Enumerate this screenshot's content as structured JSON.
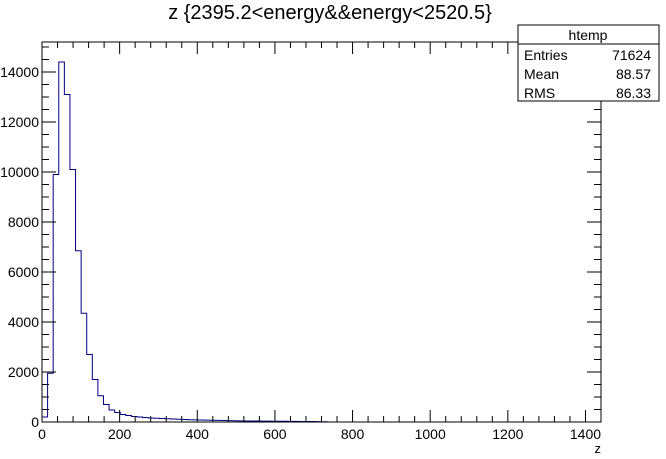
{
  "chart_data": {
    "type": "bar",
    "title": "z {2395.2<energy&&energy<2520.5}",
    "xlabel": "z",
    "ylabel": "",
    "xlim": [
      0,
      1440
    ],
    "ylim": [
      0,
      15200
    ],
    "bin_width": 14.4,
    "bin_start": 0,
    "values": [
      200,
      1950,
      9900,
      14400,
      13100,
      10100,
      6850,
      4350,
      2700,
      1700,
      1050,
      700,
      480,
      380,
      300,
      260,
      220,
      200,
      180,
      160,
      150,
      140,
      130,
      120,
      110,
      100,
      90,
      85,
      80,
      75,
      70,
      65,
      60,
      55,
      50,
      45,
      42,
      40,
      38,
      36,
      34,
      32,
      30,
      28,
      26,
      24,
      22,
      20,
      18,
      16,
      12
    ],
    "x_ticks": [
      "0",
      "200",
      "400",
      "600",
      "800",
      "1000",
      "1200",
      "1400"
    ],
    "x_tick_values": [
      0,
      200,
      400,
      600,
      800,
      1000,
      1200,
      1400
    ],
    "y_ticks": [
      "0",
      "2000",
      "4000",
      "6000",
      "8000",
      "10000",
      "12000",
      "14000"
    ],
    "y_tick_values": [
      0,
      2000,
      4000,
      6000,
      8000,
      10000,
      12000,
      14000
    ],
    "line_color": "#000080",
    "grid": false,
    "legend_position": "top-right"
  },
  "stats": {
    "name": "htemp",
    "rows": [
      {
        "label": "Entries",
        "value": "71624"
      },
      {
        "label": "Mean",
        "value": "88.57"
      },
      {
        "label": "RMS",
        "value": "86.33"
      }
    ]
  }
}
